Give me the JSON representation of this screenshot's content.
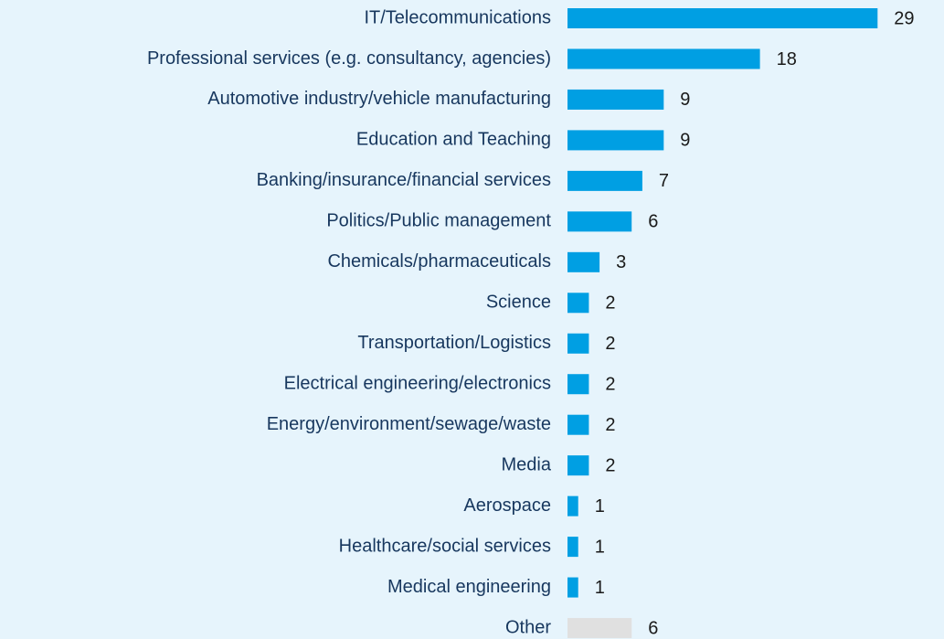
{
  "chart_data": {
    "type": "bar",
    "orientation": "horizontal",
    "categories": [
      "IT/Telecommunications",
      "Professional services (e.g. consultancy, agencies)",
      "Automotive industry/vehicle manufacturing",
      "Education and Teaching",
      "Banking/insurance/financial services",
      "Politics/Public management",
      "Chemicals/pharmaceuticals",
      "Science",
      "Transportation/Logistics",
      "Electrical engineering/electronics",
      "Energy/environment/sewage/waste",
      "Media",
      "Aerospace",
      "Healthcare/social services",
      "Medical engineering",
      "Other"
    ],
    "values": [
      29,
      18,
      9,
      9,
      7,
      6,
      3,
      2,
      2,
      2,
      2,
      2,
      1,
      1,
      1,
      6
    ],
    "colors": [
      "#009fe3",
      "#009fe3",
      "#009fe3",
      "#009fe3",
      "#009fe3",
      "#009fe3",
      "#009fe3",
      "#009fe3",
      "#009fe3",
      "#009fe3",
      "#009fe3",
      "#009fe3",
      "#009fe3",
      "#009fe3",
      "#009fe3",
      "#e0e0e0"
    ]
  }
}
